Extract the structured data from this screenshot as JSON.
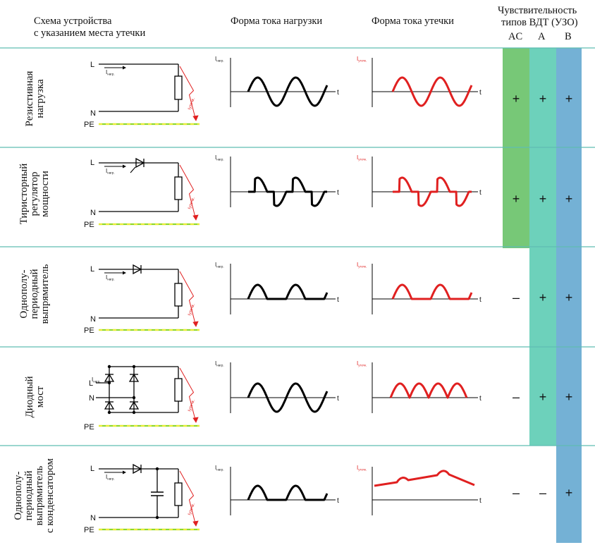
{
  "headers": {
    "scheme_line1": "Схема устройства",
    "scheme_line2": "с указанием места утечки",
    "load_current": "Форма тока нагрузки",
    "leak_current": "Форма тока утечки",
    "sens_line1": "Чувствительность",
    "sens_line2": "типов ВДТ (УЗО)",
    "types": [
      "AC",
      "A",
      "B"
    ]
  },
  "colors": {
    "ac": "#77c877",
    "a": "#6dd1bb",
    "b": "#74b1d5",
    "row_line": "#5fbdb2",
    "leak_red": "#e02020",
    "pe_green": "#8fd82c",
    "pe_yellow": "#e9ec37"
  },
  "circuit_labels": {
    "L": "L",
    "N": "N",
    "PE": "PE",
    "i_load": "Iнагр.",
    "i_leak": "Iутечк.",
    "t": "t"
  },
  "rows": [
    {
      "label_line1": "Резистивная",
      "label_line2": "нагрузка",
      "label_line3": "",
      "label_line4": "",
      "ac": "+",
      "a": "+",
      "b": "+"
    },
    {
      "label_line1": "Тиристорный",
      "label_line2": "регулятор",
      "label_line3": "мощности",
      "label_line4": "",
      "ac": "+",
      "a": "+",
      "b": "+"
    },
    {
      "label_line1": "Однополу-",
      "label_line2": "периодный",
      "label_line3": "выпрямитель",
      "label_line4": "",
      "ac": "–",
      "a": "+",
      "b": "+"
    },
    {
      "label_line1": "Диодный",
      "label_line2": "мост",
      "label_line3": "",
      "label_line4": "",
      "ac": "–",
      "a": "+",
      "b": "+"
    },
    {
      "label_line1": "Однополу-",
      "label_line2": "периодный",
      "label_line3": "выпрямитель",
      "label_line4": "с конденсатором",
      "ac": "–",
      "a": "–",
      "b": "+"
    }
  ]
}
